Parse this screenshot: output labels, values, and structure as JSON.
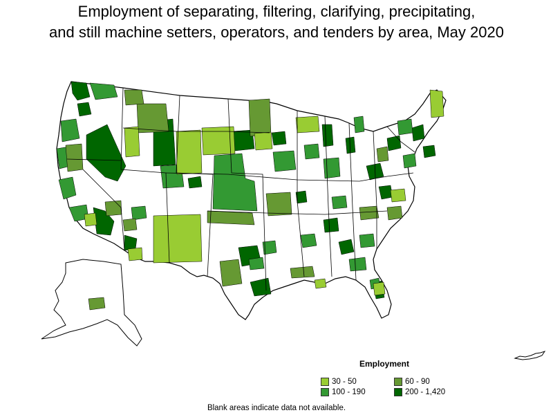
{
  "title_line1": "Employment of separating, filtering, clarifying, precipitating,",
  "title_line2": "and still machine setters, operators, and tenders by area, May 2020",
  "legend": {
    "title": "Employment",
    "items": [
      {
        "label": "30 - 50",
        "color": "#99cc33"
      },
      {
        "label": "60 - 90",
        "color": "#669933"
      },
      {
        "label": "100 - 190",
        "color": "#339933"
      },
      {
        "label": "200 - 1,420",
        "color": "#006600"
      }
    ]
  },
  "note": "Blank areas indicate data not available.",
  "colors": {
    "outline": "#000000",
    "blank": "#ffffff"
  }
}
